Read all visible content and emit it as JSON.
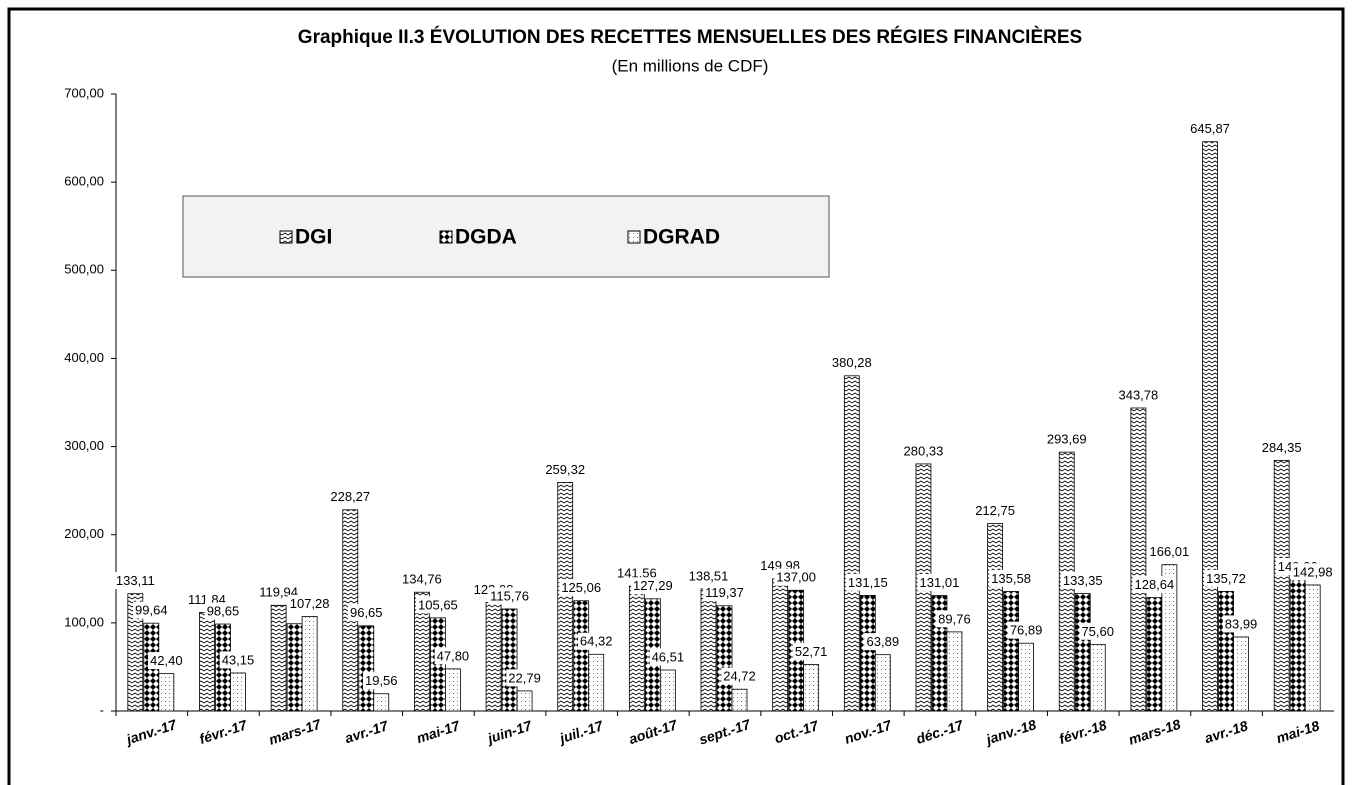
{
  "chart_data": {
    "type": "bar",
    "title": "Graphique II.3 ÉVOLUTION DES RECETTES MENSUELLES DES RÉGIES FINANCIÈRES",
    "subtitle": "(En millions  de CDF)",
    "categories": [
      "janv.-17",
      "févr.-17",
      "mars-17",
      "avr.-17",
      "mai-17",
      "juin-17",
      "juil.-17",
      "août-17",
      "sept.-17",
      "oct.-17",
      "nov.-17",
      "déc.-17",
      "janv.-18",
      "févr.-18",
      "mars-18",
      "avr.-18",
      "mai-18"
    ],
    "series": [
      {
        "name": "DGI",
        "color": "#000000",
        "values": [
          133.11,
          111.84,
          119.94,
          228.27,
          134.76,
          123.08,
          259.32,
          141.56,
          138.51,
          149.98,
          380.28,
          280.33,
          212.75,
          293.69,
          343.78,
          645.87,
          284.35
        ],
        "value_labels": [
          "133,11",
          "111,84",
          "119,94",
          "228,27",
          "134,76",
          "123,08",
          "259,32",
          "141,56",
          "138,51",
          "149,98",
          "380,28",
          "280,33",
          "212,75",
          "293,69",
          "343,78",
          "645,87",
          "284,35"
        ]
      },
      {
        "name": "DGDA",
        "color": "#000000",
        "values": [
          99.64,
          98.65,
          99,
          96.65,
          105.65,
          115.76,
          125.06,
          127.29,
          119.37,
          137.0,
          131.15,
          131.01,
          135.58,
          133.35,
          128.64,
          135.72,
          149.06
        ],
        "value_labels": [
          "99,64",
          "98,65",
          null,
          "96,65",
          "105,65",
          "115,76",
          "125,06",
          "127,29",
          "119,37",
          "137,00",
          "131,15",
          "131,01",
          "135,58",
          "133,35",
          "128,64",
          "135,72",
          "149,06"
        ]
      },
      {
        "name": "DGRAD",
        "color": "#000000",
        "values": [
          42.4,
          43.15,
          107.28,
          19.56,
          47.8,
          22.79,
          64.32,
          46.51,
          24.72,
          52.71,
          63.89,
          89.76,
          76.89,
          75.6,
          166.01,
          83.99,
          142.98
        ],
        "value_labels": [
          "42,40",
          "43,15",
          "107,28",
          "19,56",
          "47,80",
          "22,79",
          "64,32",
          "46,51",
          "24,72",
          "52,71",
          "63,89",
          "89,76",
          "76,89",
          "75,60",
          "166,01",
          "83,99",
          "142,98"
        ]
      }
    ],
    "ylim": [
      0,
      700
    ],
    "yticks": [
      {
        "value": 0,
        "label": "-"
      },
      {
        "value": 100,
        "label": "100,00"
      },
      {
        "value": 200,
        "label": "200,00"
      },
      {
        "value": 300,
        "label": "300,00"
      },
      {
        "value": 400,
        "label": "400,00"
      },
      {
        "value": 500,
        "label": "500,00"
      },
      {
        "value": 600,
        "label": "600,00"
      },
      {
        "value": 700,
        "label": "700,00"
      }
    ],
    "legend": "top-left"
  }
}
